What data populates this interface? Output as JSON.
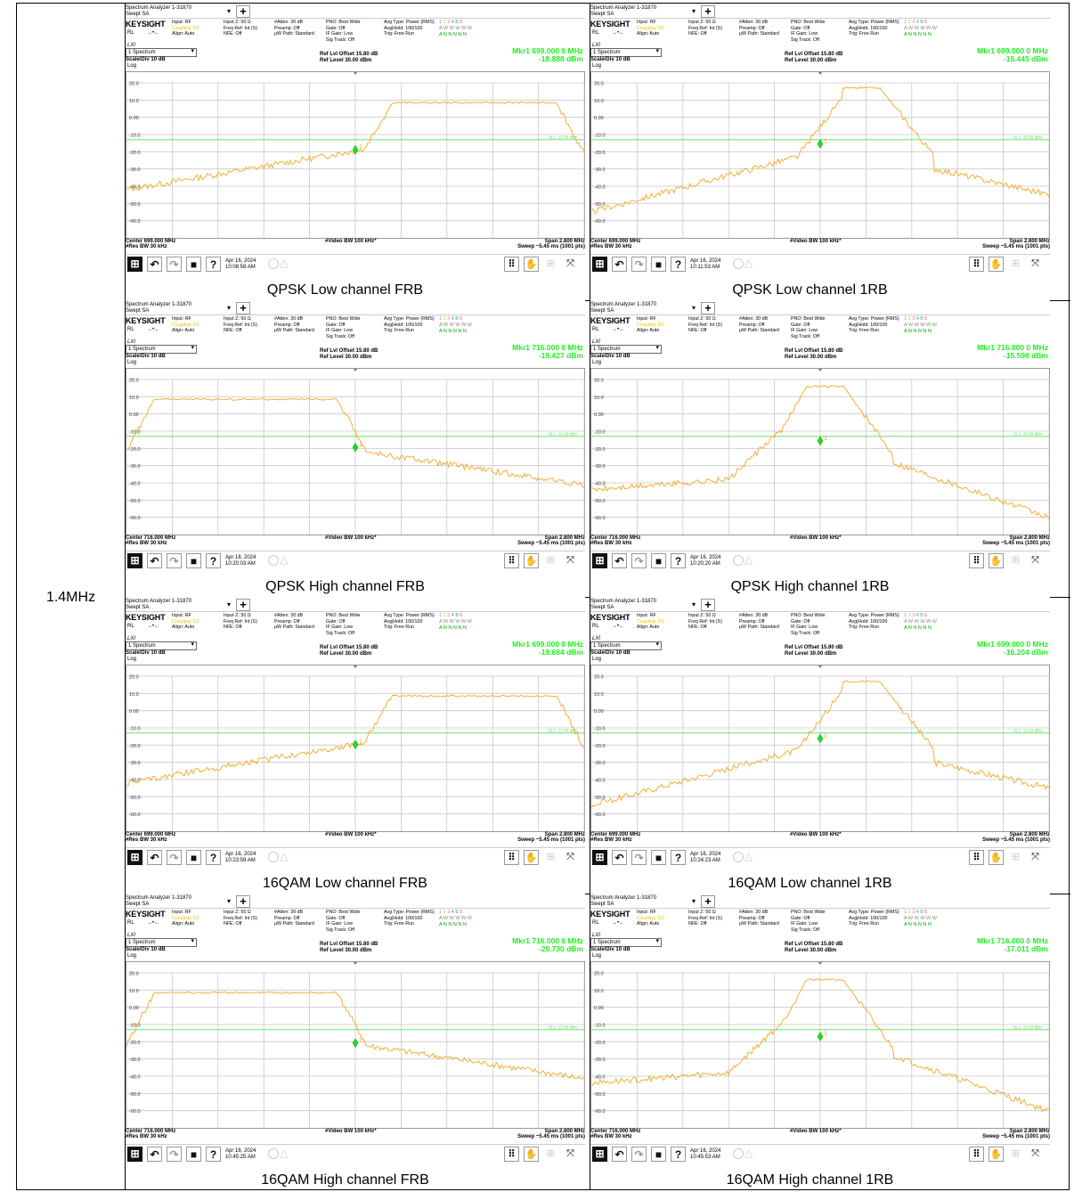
{
  "row_label": "1.4MHz",
  "common": {
    "title_line1": "Spectrum Analyzer 1-31870",
    "title_line2": "Swept SA",
    "brand": "KEYSIGHT",
    "rl": "RL",
    "lxi": "LXI",
    "col1": [
      "Input: RF",
      "Coupling: DC",
      "Align: Auto"
    ],
    "col2": [
      "Input Z: 50 Ω",
      "",
      "Freq Ref: Int (S)",
      "NFE: Off"
    ],
    "col3": [
      "#Atten: 30 dB",
      "Preamp: Off",
      "μW Path: Standard"
    ],
    "col4": [
      "PNO: Best Wide",
      "Gate: Off",
      "IF Gain: Low",
      "Sig Track: Off"
    ],
    "col5": [
      "Avg Type: Power (RMS)",
      "Avg|Hold: 100/100",
      "Trig: Free Run"
    ],
    "trace_digits": [
      "1",
      "2",
      "3",
      "4",
      "5",
      "6"
    ],
    "trace_row2": "A W W W W W",
    "trace_row3": "A N N N N N",
    "selector": "1 Spectrum",
    "scale": "Scale/Div 10 dB",
    "log": "Log",
    "ref_offset": "Ref Lvl Offset 15.80 dB",
    "ref_level": "Ref Level 30.00 dBm",
    "res_bw": "#Res BW 30 kHz",
    "video_bw": "#Video BW 100 kHz*",
    "span": "Span 2.800 MHz",
    "sweep": "Sweep ~5.45 ms (1001 pts)",
    "date": "Apr 16, 2024",
    "y_ticks": [
      "20.0",
      "10.0",
      "0.00",
      "-10.0",
      "-20.0",
      "-30.0",
      "-40.0",
      "-50.0",
      "-60.0"
    ],
    "limit_label": "DL1 -13.00 dBm",
    "colors": {
      "trace": "#f5a623",
      "marker": "#22dd22",
      "limit": "#55dd55",
      "grid": "#c8c8c8"
    }
  },
  "cells": [
    {
      "caption": "QPSK Low channel FRB",
      "center": "Center 699.000 MHz",
      "mkr_freq": "Mkr1  699.000 0 MHz",
      "mkr_val": "-18.888 dBm",
      "time": "10:08:58 AM",
      "shape": "frb_low",
      "mkr_y": -18.888
    },
    {
      "caption": "QPSK Low channel 1RB",
      "center": "Center 699.000 MHz",
      "mkr_freq": "Mkr1  699.000 0 MHz",
      "mkr_val": "-15.445 dBm",
      "time": "10:11:53 AM",
      "shape": "rb_low",
      "mkr_y": -15.445
    },
    {
      "caption": "QPSK High channel FRB",
      "center": "Center 716.000 MHz",
      "mkr_freq": "Mkr1  716.000 0 MHz",
      "mkr_val": "-19.427 dBm",
      "time": "10:20:03 AM",
      "shape": "frb_high",
      "mkr_y": -19.427
    },
    {
      "caption": "QPSK High channel 1RB",
      "center": "Center 716.000 MHz",
      "mkr_freq": "Mkr1  716.000 0 MHz",
      "mkr_val": "-15.598 dBm",
      "time": "10:20:20 AM",
      "shape": "rb_high",
      "mkr_y": -15.598
    },
    {
      "caption": "16QAM Low channel FRB",
      "center": "Center 699.000 MHz",
      "mkr_freq": "Mkr1  699.000 0 MHz",
      "mkr_val": "-19.684 dBm",
      "time": "10:23:59 AM",
      "shape": "frb_low",
      "mkr_y": -19.684
    },
    {
      "caption": "16QAM Low channel 1RB",
      "center": "Center 699.000 MHz",
      "mkr_freq": "Mkr1  699.000 0 MHz",
      "mkr_val": "-16.204 dBm",
      "time": "10:24:23 AM",
      "shape": "rb_low",
      "mkr_y": -16.204
    },
    {
      "caption": "16QAM High channel FRB",
      "center": "Center 716.000 MHz",
      "mkr_freq": "Mkr1  716.000 0 MHz",
      "mkr_val": "-20.730 dBm",
      "time": "10:45:25 AM",
      "shape": "frb_high",
      "mkr_y": -20.73
    },
    {
      "caption": "16QAM High channel 1RB",
      "center": "Center 716.000 MHz",
      "mkr_freq": "Mkr1  716.000 0 MHz",
      "mkr_val": "-17.011 dBm",
      "time": "10:45:53 AM",
      "shape": "rb_high",
      "mkr_y": -17.011
    }
  ]
}
